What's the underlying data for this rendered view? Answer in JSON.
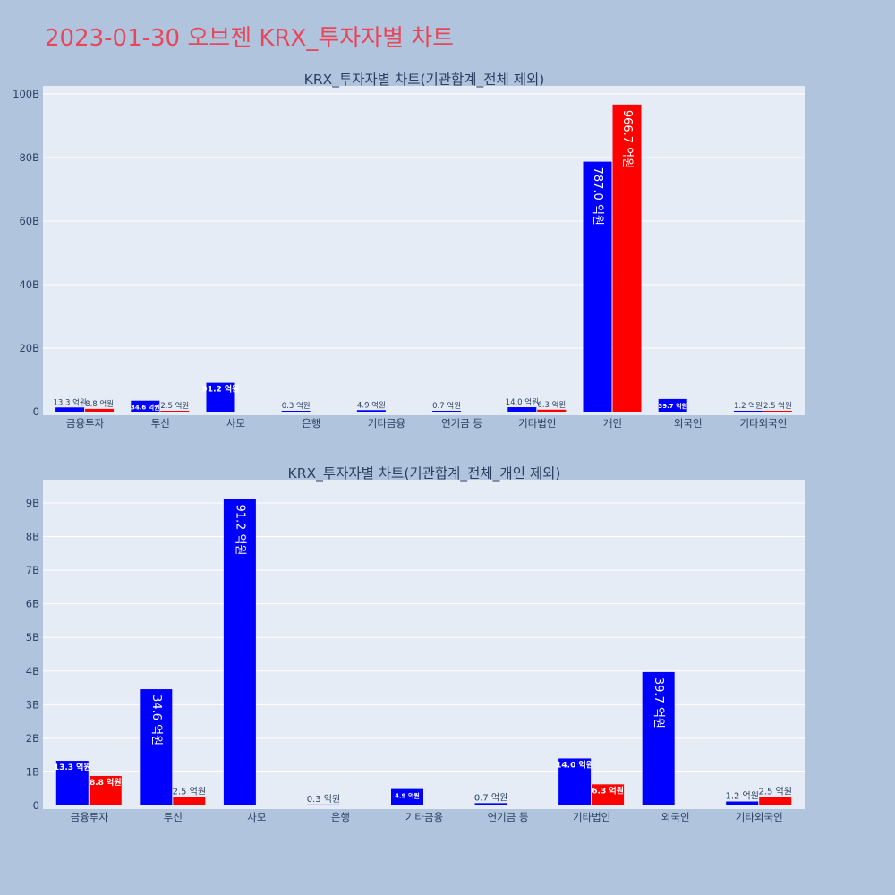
{
  "page_title": "2023-01-30 오브젠 KRX_투자자별 차트",
  "colors": {
    "background": "#b0c4de",
    "plot_bg": "#e5ecf6",
    "series_a": "#0000ff",
    "series_b": "#ff0000",
    "title": "#e8475a",
    "text": "#2a3f5f"
  },
  "chart_data": [
    {
      "type": "bar",
      "title": "KRX_투자자별 차트(기관합계_전체 제외)",
      "categories": [
        "금융투자",
        "투신",
        "사모",
        "은행",
        "기타금융",
        "연기금 등",
        "기타법인",
        "개인",
        "외국인",
        "기타외국인"
      ],
      "series": [
        {
          "color": "#0000ff",
          "values": [
            1.33,
            3.46,
            9.12,
            0.03,
            0.49,
            0.07,
            1.4,
            78.7,
            3.97,
            0.12
          ],
          "labels": [
            "13.3 억원",
            "34.6 억원",
            "91.2 억원",
            "0.3 억원",
            "4.9 억원",
            "0.7 억원",
            "14.0 억원",
            "787.0 억원",
            "39.7 억원",
            "1.2 억원"
          ]
        },
        {
          "color": "#ff0000",
          "values": [
            0.88,
            0.25,
            null,
            null,
            null,
            null,
            0.63,
            96.67,
            null,
            0.25
          ],
          "labels": [
            "8.8 억원",
            "2.5 억원",
            "",
            "",
            "",
            "",
            "6.3 억원",
            "966.7 억원",
            "",
            "2.5 억원"
          ]
        }
      ],
      "yticks": [
        "0",
        "20B",
        "40B",
        "60B",
        "80B",
        "100B"
      ],
      "ytick_values": [
        0,
        20,
        40,
        60,
        80,
        100
      ],
      "ylim": [
        0,
        101
      ],
      "unit": "B",
      "grid": true
    },
    {
      "type": "bar",
      "title": "KRX_투자자별 차트(기관합계_전체_개인 제외)",
      "categories": [
        "금융투자",
        "투신",
        "사모",
        "은행",
        "기타금융",
        "연기금 등",
        "기타법인",
        "외국인",
        "기타외국인"
      ],
      "series": [
        {
          "color": "#0000ff",
          "values": [
            1.33,
            3.46,
            9.12,
            0.03,
            0.49,
            0.07,
            1.4,
            3.97,
            0.12
          ],
          "labels": [
            "13.3 억원",
            "34.6 억원",
            "91.2 억원",
            "0.3 억원",
            "4.9 억원",
            "0.7 억원",
            "14.0 억원",
            "39.7 억원",
            "1.2 억원"
          ]
        },
        {
          "color": "#ff0000",
          "values": [
            0.88,
            0.25,
            null,
            null,
            null,
            null,
            0.63,
            null,
            0.25
          ],
          "labels": [
            "8.8 억원",
            "2.5 억원",
            "",
            "",
            "",
            "",
            "6.3 억원",
            "",
            "2.5 억원"
          ]
        }
      ],
      "yticks": [
        "0",
        "1B",
        "2B",
        "3B",
        "4B",
        "5B",
        "6B",
        "7B",
        "8B",
        "9B"
      ],
      "ytick_values": [
        0,
        1,
        2,
        3,
        4,
        5,
        6,
        7,
        8,
        9
      ],
      "ylim": [
        0,
        9.6
      ],
      "unit": "B",
      "grid": true
    }
  ]
}
